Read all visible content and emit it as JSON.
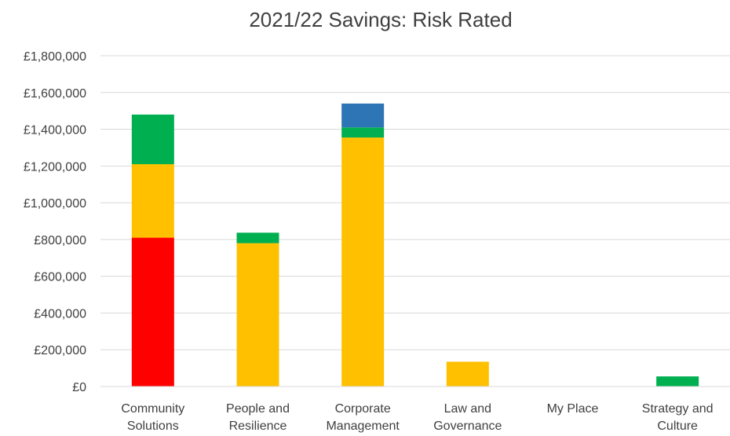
{
  "chart_data": {
    "type": "bar",
    "stacked": true,
    "title": "2021/22 Savings: Risk Rated",
    "xlabel": "",
    "ylabel": "",
    "ylim": [
      0,
      1800000
    ],
    "y_ticks": [
      "£0",
      "£200,000",
      "£400,000",
      "£600,000",
      "£800,000",
      "£1,000,000",
      "£1,200,000",
      "£1,400,000",
      "£1,600,000",
      "£1,800,000"
    ],
    "y_tick_values": [
      0,
      200000,
      400000,
      600000,
      800000,
      1000000,
      1200000,
      1400000,
      1600000,
      1800000
    ],
    "grid": true,
    "legend": "none",
    "categories": [
      [
        "Community",
        "Solutions"
      ],
      [
        "People and",
        "Resilience"
      ],
      [
        "Corporate",
        "Management"
      ],
      [
        "Law and",
        "Governance"
      ],
      [
        "My Place"
      ],
      [
        "Strategy and",
        "Culture"
      ]
    ],
    "series": [
      {
        "color": "#ff0000",
        "values": [
          810000,
          0,
          0,
          0,
          0,
          0
        ]
      },
      {
        "color": "#ffc000",
        "values": [
          400000,
          780000,
          1355000,
          135000,
          0,
          0
        ]
      },
      {
        "color": "#00b050",
        "values": [
          270000,
          57000,
          55000,
          0,
          0,
          55000
        ]
      },
      {
        "color": "#2e75b6",
        "values": [
          0,
          0,
          130000,
          0,
          0,
          0
        ]
      }
    ]
  }
}
